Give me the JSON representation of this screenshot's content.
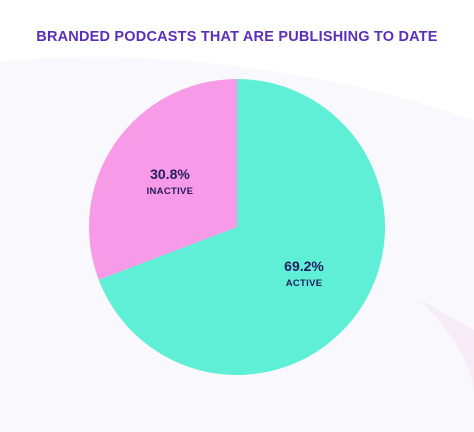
{
  "chart_data": {
    "type": "pie",
    "title": "BRANDED PODCASTS THAT ARE PUBLISHING TO DATE",
    "slices": [
      {
        "label": "ACTIVE",
        "value": 69.2,
        "value_label": "69.2%",
        "color": "#5eefd6"
      },
      {
        "label": "INACTIVE",
        "value": 30.8,
        "value_label": "30.8%",
        "color": "#f79ae8"
      }
    ],
    "start": "top",
    "direction": "clockwise"
  }
}
